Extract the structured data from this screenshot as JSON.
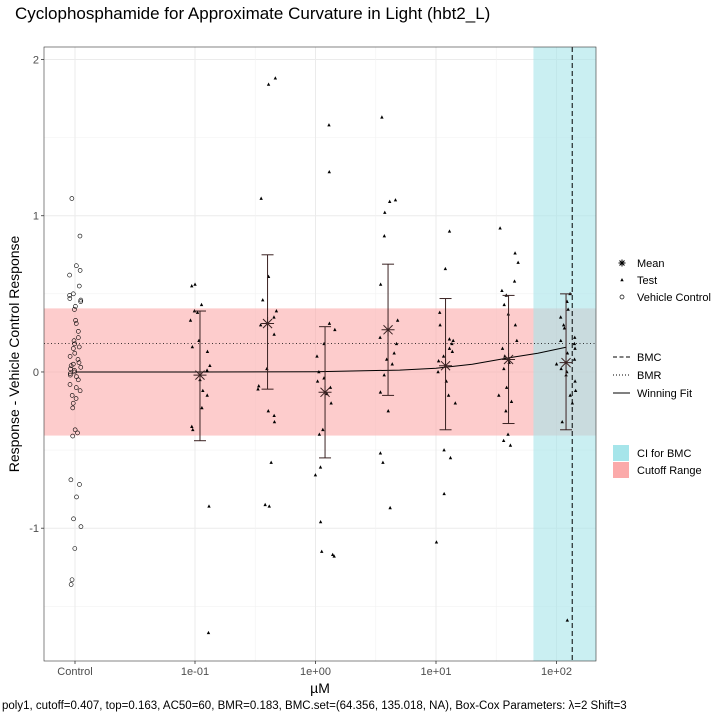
{
  "title": "Cyclophosphamide for Approximate Curvature in Light (hbt2_L)",
  "caption": "poly1, cutoff=0.407, top=0.163, AC50=60, BMR=0.183, BMC.set=(64.356, 135.018, NA), Box-Cox Parameters: λ=2 Shift=3",
  "legend": {
    "points": [
      {
        "label": "Mean",
        "symbol": "asterisk"
      },
      {
        "label": "Test",
        "symbol": "filled-point"
      },
      {
        "label": "Vehicle Control",
        "symbol": "open-circle"
      }
    ],
    "lines": [
      {
        "label": "BMC",
        "style": "dashed"
      },
      {
        "label": "BMR",
        "style": "dotted"
      },
      {
        "label": "Winning Fit",
        "style": "solid"
      }
    ],
    "fills": [
      {
        "label": "CI for BMC",
        "color": "#a6e5ea"
      },
      {
        "label": "Cutoff Range",
        "color": "#fbaaaa"
      }
    ]
  },
  "chart_data": {
    "type": "scatter",
    "title": "Cyclophosphamide for Approximate Curvature in Light (hbt2_L)",
    "xlabel": "µM",
    "ylabel": "Response - Vehicle Control Response",
    "x_scale": "log10",
    "x_tick_labels": [
      "Control",
      "1e-01",
      "1e+00",
      "1e+01",
      "1e+02"
    ],
    "y_ticks": [
      -1,
      0,
      1,
      2
    ],
    "ylim": [
      -1.85,
      2.08
    ],
    "grid": true,
    "legend_position": "right",
    "cutoff_range": [
      -0.407,
      0.407
    ],
    "bmr": 0.183,
    "bmc": 135.018,
    "bmc_ci": [
      64.356,
      220
    ],
    "vehicle_control": [
      1.11,
      0.87,
      0.68,
      0.65,
      0.62,
      0.55,
      0.5,
      0.49,
      0.47,
      0.46,
      0.45,
      0.42,
      0.4,
      0.33,
      0.31,
      0.26,
      0.22,
      0.2,
      0.18,
      0.16,
      0.15,
      0.12,
      0.1,
      0.08,
      0.06,
      0.05,
      0.04,
      0.03,
      0.02,
      0.01,
      0.0,
      -0.01,
      -0.02,
      -0.03,
      -0.05,
      -0.08,
      -0.1,
      -0.12,
      -0.15,
      -0.17,
      -0.2,
      -0.23,
      -0.37,
      -0.39,
      -0.41,
      -0.69,
      -0.72,
      -0.8,
      -0.94,
      -0.99,
      -1.13,
      -1.36,
      -1.33
    ],
    "test": [
      {
        "conc": 0.11,
        "values": [
          0.56,
          0.55,
          0.43,
          0.39,
          0.38,
          0.33,
          0.2,
          0.16,
          0.13,
          0.04,
          0.01,
          -0.05,
          -0.12,
          -0.15,
          -0.23,
          -0.35,
          -0.37,
          -0.86,
          -1.67
        ]
      },
      {
        "conc": 0.4,
        "values": [
          1.88,
          1.84,
          1.11,
          0.61,
          0.46,
          0.39,
          0.35,
          0.3,
          0.24,
          0.02,
          -0.09,
          -0.11,
          -0.25,
          -0.28,
          -0.32,
          -0.58,
          -0.85,
          -0.86
        ]
      },
      {
        "conc": 1.2,
        "values": [
          1.58,
          1.28,
          0.31,
          0.27,
          0.18,
          0.1,
          0.0,
          -0.04,
          -0.06,
          -0.1,
          -0.14,
          -0.2,
          -0.37,
          -0.4,
          -0.61,
          -0.66,
          -0.96,
          -1.15,
          -1.17,
          -1.18
        ]
      },
      {
        "conc": 4.0,
        "values": [
          1.63,
          1.1,
          1.09,
          1.02,
          0.87,
          0.56,
          0.33,
          0.22,
          0.18,
          0.12,
          0.08,
          0.05,
          -0.02,
          -0.13,
          -0.25,
          -0.52,
          -0.58,
          -0.87
        ]
      },
      {
        "conc": 12.0,
        "values": [
          0.9,
          0.66,
          0.38,
          0.3,
          0.21,
          0.2,
          0.18,
          0.15,
          0.13,
          0.1,
          0.07,
          0.0,
          -0.06,
          -0.15,
          -0.2,
          -0.5,
          -0.55,
          -0.78,
          -1.09
        ]
      },
      {
        "conc": 40.0,
        "values": [
          0.92,
          0.76,
          0.7,
          0.58,
          0.52,
          0.49,
          0.43,
          0.37,
          0.3,
          0.2,
          0.15,
          0.1,
          0.06,
          0.02,
          -0.1,
          -0.15,
          -0.19,
          -0.25,
          -0.4,
          -0.44,
          -0.47
        ]
      },
      {
        "conc": 120.0,
        "values": [
          0.5,
          0.45,
          0.4,
          0.35,
          0.3,
          0.28,
          0.22,
          0.2,
          0.18,
          0.15,
          0.12,
          0.08,
          0.05,
          0.02,
          0.0,
          -0.02,
          -0.06,
          -0.12,
          -0.15,
          -0.2,
          -0.32,
          -1.59
        ]
      }
    ],
    "means": [
      {
        "conc": 0.11,
        "mean": -0.02,
        "lower": -0.44,
        "upper": 0.39
      },
      {
        "conc": 0.4,
        "mean": 0.31,
        "lower": -0.11,
        "upper": 0.75
      },
      {
        "conc": 1.2,
        "mean": -0.13,
        "lower": -0.55,
        "upper": 0.29
      },
      {
        "conc": 4.0,
        "mean": 0.27,
        "lower": -0.15,
        "upper": 0.69
      },
      {
        "conc": 12.0,
        "mean": 0.04,
        "lower": -0.37,
        "upper": 0.47
      },
      {
        "conc": 40.0,
        "mean": 0.08,
        "lower": -0.33,
        "upper": 0.49
      },
      {
        "conc": 120.0,
        "mean": 0.06,
        "lower": -0.37,
        "upper": 0.5
      }
    ],
    "fit": [
      {
        "x": 0.001,
        "y": 0.0
      },
      {
        "x": 0.1,
        "y": 0.0
      },
      {
        "x": 1.0,
        "y": 0.002
      },
      {
        "x": 5.0,
        "y": 0.012
      },
      {
        "x": 10.0,
        "y": 0.024
      },
      {
        "x": 20.0,
        "y": 0.05
      },
      {
        "x": 40.0,
        "y": 0.09
      },
      {
        "x": 70.0,
        "y": 0.12
      },
      {
        "x": 120.0,
        "y": 0.158
      }
    ]
  }
}
